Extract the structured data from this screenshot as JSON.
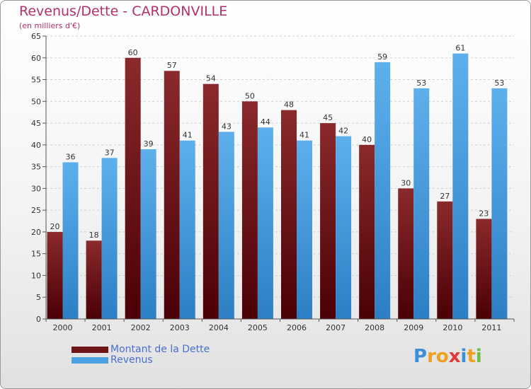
{
  "title": "Revenus/Dette - CARDONVILLE",
  "subtitle": "(en milliers d'€)",
  "colors": {
    "debt": "#6e1518",
    "revenue": "#4da3e2",
    "title": "#b0306e"
  },
  "legend": {
    "debt_label": "Montant de la Dette",
    "revenue_label": "Revenus"
  },
  "logo": {
    "text": "Proxiti",
    "letters": [
      "P",
      "r",
      "o",
      "x",
      "i",
      "t",
      "i"
    ],
    "colors": [
      "#3a8fd8",
      "#f0a020",
      "#f0a020",
      "#e03a3a",
      "#3a8fd8",
      "#f0a020",
      "#6cc04a"
    ]
  },
  "chart_data": {
    "type": "bar",
    "categories": [
      "2000",
      "2001",
      "2002",
      "2003",
      "2004",
      "2005",
      "2006",
      "2007",
      "2008",
      "2009",
      "2010",
      "2011"
    ],
    "series": [
      {
        "name": "Montant de la Dette",
        "values": [
          20,
          18,
          60,
          57,
          54,
          50,
          48,
          45,
          40,
          30,
          27,
          23
        ]
      },
      {
        "name": "Revenus",
        "values": [
          36,
          37,
          39,
          41,
          43,
          44,
          41,
          42,
          59,
          53,
          61,
          53
        ]
      }
    ],
    "ylim": [
      0,
      65
    ],
    "yticks": [
      0,
      5,
      10,
      15,
      20,
      25,
      30,
      35,
      40,
      45,
      50,
      55,
      60,
      65
    ],
    "grid": true,
    "legend_position": "bottom-left"
  }
}
